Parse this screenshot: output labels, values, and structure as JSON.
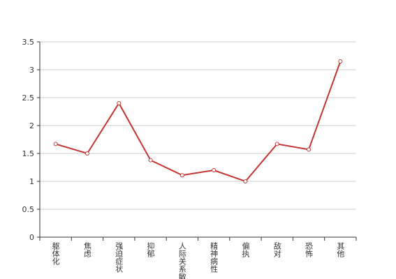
{
  "chart_data": {
    "type": "line",
    "categories": [
      "躯体化",
      "焦虑",
      "强迫症状",
      "抑郁",
      "人际关系敏感",
      "精神病性",
      "偏执",
      "敌对",
      "恐怖",
      "其他"
    ],
    "values": [
      1.67,
      1.5,
      2.4,
      1.38,
      1.11,
      1.2,
      1.0,
      1.67,
      1.57,
      3.15
    ],
    "color": "#c23531",
    "ylim": [
      0,
      3.5
    ],
    "yticks": [
      0,
      0.5,
      1,
      1.5,
      2,
      2.5,
      3,
      3.5
    ],
    "grid": true
  }
}
